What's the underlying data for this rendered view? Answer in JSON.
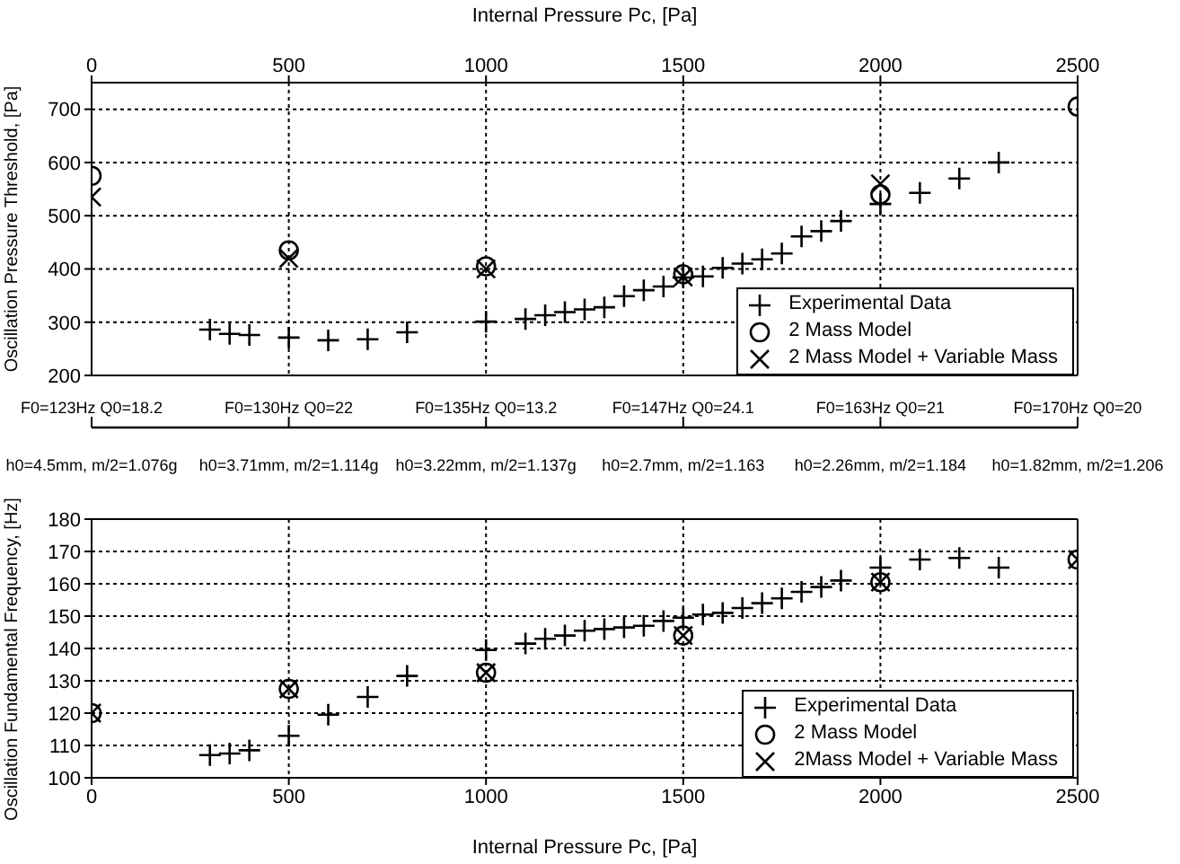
{
  "chart_data": [
    {
      "type": "scatter",
      "ylabel": "Oscillation Pressure Threshold, [Pa]",
      "xlabel": "Internal Pressure Pc, [Pa]",
      "xlim": [
        0,
        2500
      ],
      "xticks": [
        0,
        500,
        1000,
        1500,
        2000,
        2500
      ],
      "ylim": [
        200,
        750
      ],
      "yticks": [
        200,
        300,
        400,
        500,
        600,
        700
      ],
      "grid": true,
      "legend": "bottom right",
      "annotations": [
        "F0=123Hz Q0=18.2",
        "F0=130Hz Q0=22",
        "F0=135Hz Q0=13.2",
        "F0=147Hz Q0=24.1",
        "F0=163Hz Q0=21",
        "F0=170Hz Q0=20"
      ],
      "series": [
        {
          "name": "Experimental Data",
          "color": "#000000",
          "marker": "cross",
          "x": [
            300,
            350,
            400,
            500,
            600,
            700,
            800,
            1000,
            1100,
            1150,
            1200,
            1250,
            1300,
            1350,
            1400,
            1450,
            1500,
            1550,
            1600,
            1650,
            1700,
            1750,
            1800,
            1850,
            1900,
            2000,
            2100,
            2200,
            2300
          ],
          "values": [
            286,
            278,
            276,
            271,
            266,
            268,
            281,
            301,
            306,
            313,
            319,
            324,
            328,
            349,
            360,
            367,
            384,
            386,
            402,
            410,
            418,
            429,
            461,
            471,
            490,
            522,
            543,
            570,
            600
          ]
        },
        {
          "name": "2 Mass Model",
          "color": "#000000",
          "marker": "circle",
          "x": [
            0,
            500,
            1000,
            1500,
            2000,
            2500
          ],
          "values": [
            575,
            435,
            405,
            390,
            540,
            705
          ]
        },
        {
          "name": "2 Mass Model + Variable Mass",
          "color": "#000000",
          "marker": "x",
          "x": [
            0,
            500,
            1000,
            1500,
            2000
          ],
          "values": [
            535,
            420,
            400,
            385,
            560
          ]
        }
      ]
    },
    {
      "type": "scatter",
      "ylabel": "Oscillation Fundamental Frequency, [Hz]",
      "xlabel": "Internal Pressure Pc, [Pa]",
      "xlim": [
        0,
        2500
      ],
      "xticks": [
        0,
        500,
        1000,
        1500,
        2000,
        2500
      ],
      "ylim": [
        100,
        180
      ],
      "yticks": [
        100,
        110,
        120,
        130,
        140,
        150,
        160,
        170,
        180
      ],
      "grid": true,
      "legend": "bottom right",
      "annotations": [
        "h0=4.5mm, m/2=1.076g",
        "h0=3.71mm, m/2=1.114g",
        "h0=3.22mm, m/2=1.137g",
        "h0=2.7mm, m/2=1.163",
        "h0=2.26mm, m/2=1.184",
        "h0=1.82mm, m/2=1.206"
      ],
      "series": [
        {
          "name": "Experimental Data",
          "color": "#000000",
          "marker": "cross",
          "x": [
            300,
            350,
            400,
            500,
            600,
            700,
            800,
            1000,
            1100,
            1150,
            1200,
            1250,
            1300,
            1350,
            1400,
            1450,
            1500,
            1550,
            1600,
            1650,
            1700,
            1750,
            1800,
            1850,
            1900,
            2000,
            2100,
            2200,
            2300
          ],
          "values": [
            107,
            107.5,
            108.5,
            113,
            119.5,
            125,
            131.5,
            139.5,
            141.5,
            143,
            144,
            145.5,
            146,
            146.5,
            147,
            148.5,
            149.5,
            150.5,
            151,
            152.5,
            154,
            155.5,
            157.5,
            159,
            161,
            165,
            167.5,
            168,
            165
          ]
        },
        {
          "name": "2 Mass Model",
          "color": "#000000",
          "marker": "circle",
          "x": [
            0,
            500,
            1000,
            1500,
            2000,
            2500
          ],
          "values": [
            120,
            127.5,
            132.5,
            144,
            160.5,
            167.5
          ]
        },
        {
          "name": "2Mass Model + Variable Mass",
          "color": "#000000",
          "marker": "x",
          "x": [
            0,
            500,
            1000,
            1500,
            2000,
            2500
          ],
          "values": [
            120,
            127.5,
            132.5,
            144,
            160.5,
            167.5
          ]
        }
      ]
    }
  ]
}
